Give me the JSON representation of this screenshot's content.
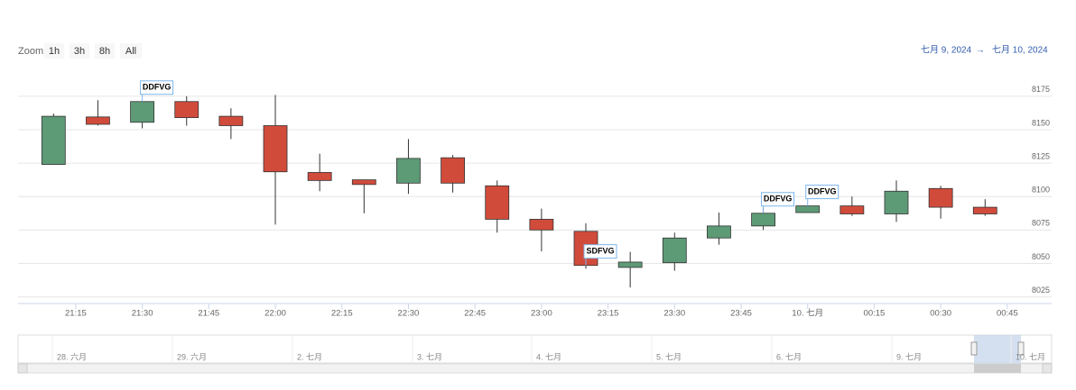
{
  "chart_data": {
    "type": "candlestick",
    "range_selector": {
      "label": "Zoom",
      "buttons": [
        "1h",
        "3h",
        "8h",
        "All"
      ]
    },
    "date_range": {
      "from": "七月 9, 2024",
      "arrow": "→",
      "to": "七月 10, 2024"
    },
    "x": [
      "21:10",
      "21:20",
      "21:30",
      "21:40",
      "21:50",
      "22:00",
      "22:10",
      "22:20",
      "22:30",
      "22:40",
      "22:50",
      "23:00",
      "23:10",
      "23:20",
      "23:30",
      "23:40",
      "23:50",
      "00:00",
      "00:10",
      "00:20",
      "00:30",
      "00:40"
    ],
    "open": [
      8124,
      8159.5,
      8155.5,
      8171,
      8160,
      8153,
      8118,
      8112.5,
      8110,
      8129,
      8108,
      8083,
      8074,
      8047,
      8050.5,
      8069,
      8078,
      8088,
      8093,
      8087,
      8106,
      8092
    ],
    "high": [
      8162,
      8172,
      8171,
      8175,
      8166,
      8176,
      8132,
      8112.5,
      8143,
      8131,
      8112,
      8091,
      8080,
      8058.6,
      8073,
      8088,
      8091.5,
      8093,
      8100,
      8112,
      8108,
      8098
    ],
    "low": [
      8124,
      8153,
      8151,
      8153,
      8143,
      8079,
      8104,
      8087.5,
      8102,
      8103,
      8073,
      8059,
      8046,
      8032,
      8044.5,
      8064,
      8075,
      8088,
      8085.5,
      8081,
      8083.5,
      8085.5
    ],
    "close": [
      8160,
      8154,
      8171,
      8159,
      8153,
      8118.5,
      8112,
      8109,
      8128.5,
      8110,
      8083,
      8075,
      8048.5,
      8051,
      8069,
      8078,
      8087.5,
      8093,
      8087,
      8104,
      8092,
      8087
    ],
    "up_color": "#5d9a76",
    "down_color": "#d14b3b",
    "flags": [
      {
        "text": "DDFVG",
        "x": "21:30",
        "y": 8171
      },
      {
        "text": "SDFVG",
        "x": "23:10",
        "y": 8048.5
      },
      {
        "text": "DDFVG",
        "x": "23:50",
        "y": 8087.5
      },
      {
        "text": "DDFVG",
        "x": "00:00",
        "y": 8093
      }
    ],
    "xlim": [
      "21:02",
      "00:55"
    ],
    "xticks": [
      "21:15",
      "21:30",
      "21:45",
      "22:00",
      "22:15",
      "22:30",
      "22:45",
      "23:00",
      "23:15",
      "23:30",
      "23:45",
      {
        "value": "00:00",
        "label": "10. 七月"
      },
      "00:15",
      "00:30",
      "00:45"
    ],
    "ylim": [
      8020,
      8187
    ],
    "yticks": [
      8025,
      8050,
      8075,
      8100,
      8125,
      8150,
      8175
    ],
    "grid": true,
    "navigator_labels": [
      "28. 六月",
      "29. 六月",
      "2. 七月",
      "3. 七月",
      "4. 七月",
      "5. 七月",
      "6. 七月",
      "9. 七月",
      "10. 七月"
    ]
  }
}
